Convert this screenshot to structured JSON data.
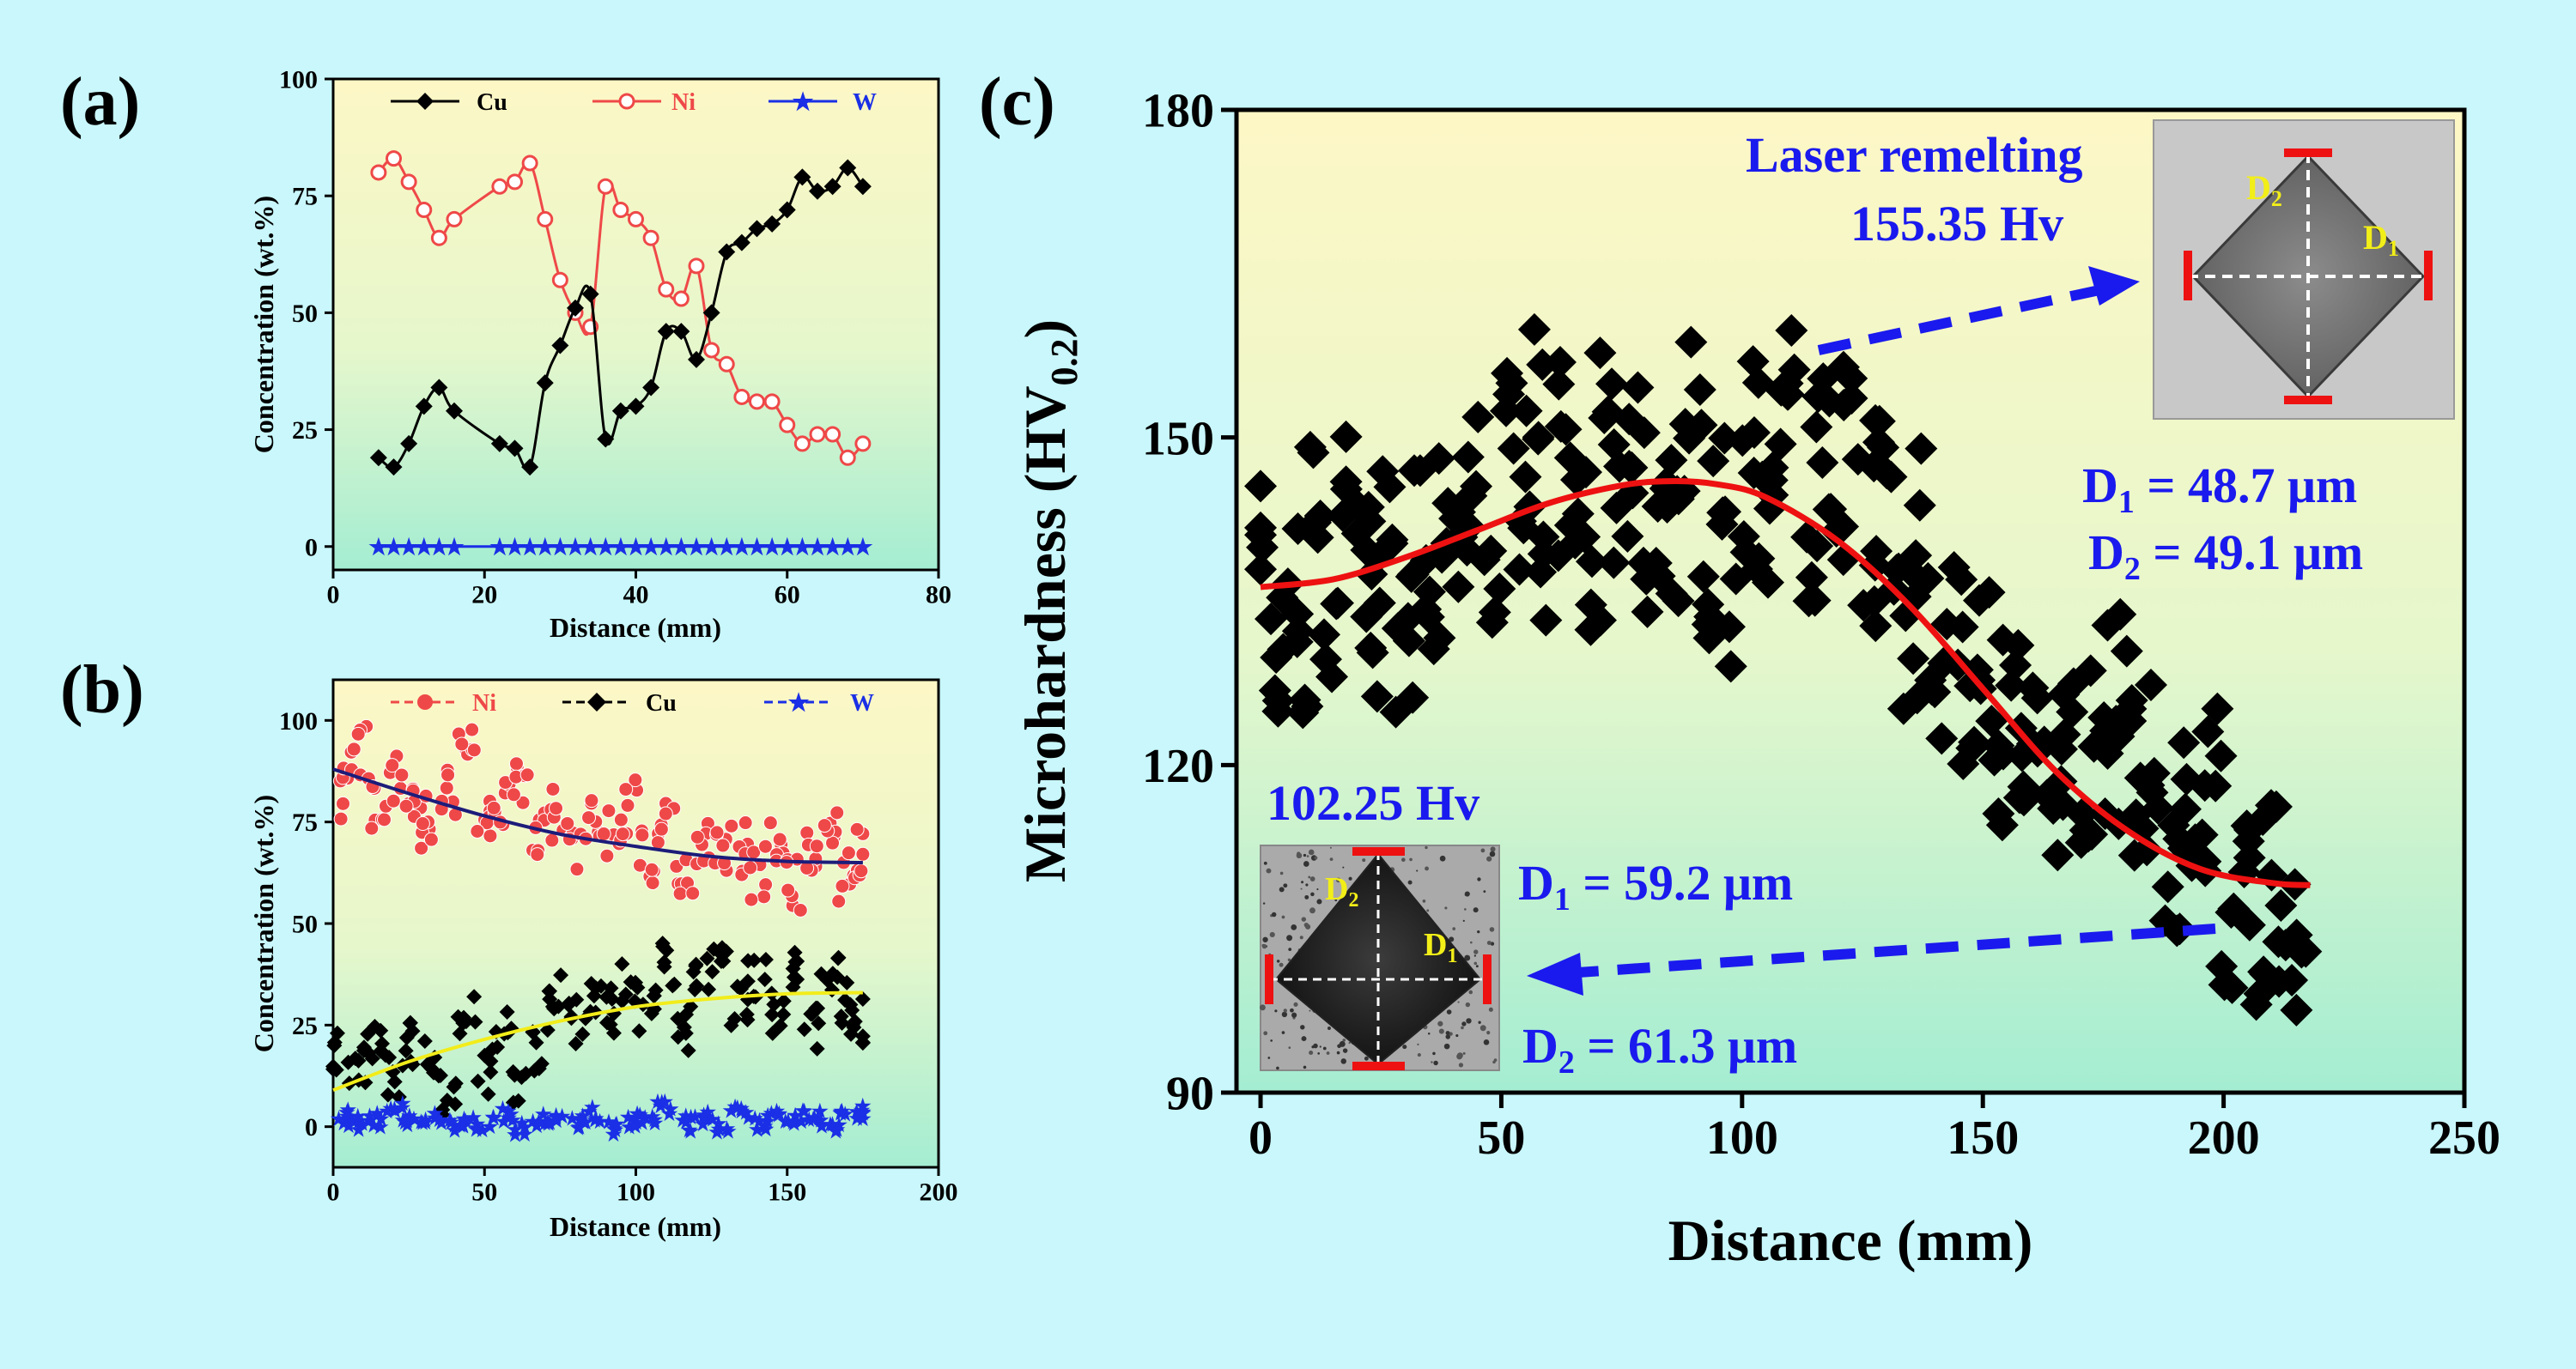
{
  "panel_labels": {
    "a": "(a)",
    "b": "(b)",
    "c": "(c)"
  },
  "colors": {
    "background": "#c9f7fb",
    "cu": "#000000",
    "ni": "#ef4848",
    "w": "#1a2fe6",
    "annotation": "#1a1aee",
    "fit_red": "#ee1111",
    "fit_yellow": "#f2ec1a",
    "fit_navy": "#1c1c7a",
    "label_yellow": "#f2ee18"
  },
  "chart_data": [
    {
      "id": "a",
      "type": "line",
      "xlabel": "Distance (mm)",
      "ylabel": "Concentration (wt.%)",
      "xlim": [
        0,
        80
      ],
      "ylim": [
        -5,
        100
      ],
      "xticks": [
        0,
        20,
        40,
        60,
        80
      ],
      "yticks": [
        0,
        25,
        50,
        75,
        100
      ],
      "legend": [
        "Cu",
        "Ni",
        "W"
      ],
      "series": [
        {
          "name": "Cu",
          "x": [
            6,
            8,
            10,
            12,
            14,
            16,
            22,
            24,
            26,
            28,
            30,
            32,
            34,
            36,
            38,
            40,
            42,
            44,
            46,
            48,
            50,
            52,
            54,
            56,
            58,
            60,
            62,
            64,
            66,
            68,
            70
          ],
          "y": [
            19,
            17,
            22,
            30,
            34,
            29,
            22,
            21,
            17,
            35,
            43,
            51,
            54,
            23,
            29,
            30,
            34,
            46,
            46,
            40,
            50,
            63,
            65,
            68,
            69,
            72,
            79,
            76,
            77,
            81,
            77
          ]
        },
        {
          "name": "Ni",
          "x": [
            6,
            8,
            10,
            12,
            14,
            16,
            22,
            24,
            26,
            28,
            30,
            32,
            34,
            36,
            38,
            40,
            42,
            44,
            46,
            48,
            50,
            52,
            54,
            56,
            58,
            60,
            62,
            64,
            66,
            68,
            70
          ],
          "y": [
            80,
            83,
            78,
            72,
            66,
            70,
            77,
            78,
            82,
            70,
            57,
            50,
            47,
            77,
            72,
            70,
            66,
            55,
            53,
            60,
            42,
            39,
            32,
            31,
            31,
            26,
            22,
            24,
            24,
            19,
            22
          ]
        },
        {
          "name": "W",
          "x": [
            6,
            8,
            10,
            12,
            14,
            16,
            22,
            24,
            26,
            28,
            30,
            32,
            34,
            36,
            38,
            40,
            42,
            44,
            46,
            48,
            50,
            52,
            54,
            56,
            58,
            60,
            62,
            64,
            66,
            68,
            70
          ],
          "y": [
            0,
            0,
            0,
            0,
            0,
            0,
            0,
            0,
            0,
            0,
            0,
            0,
            0,
            0,
            0,
            0,
            0,
            0,
            0,
            0,
            0,
            0,
            0,
            0,
            0,
            0,
            0,
            0,
            0,
            0,
            0
          ]
        }
      ]
    },
    {
      "id": "b",
      "type": "scatter",
      "xlabel": "Distance (mm)",
      "ylabel": "Concentration (wt.%)",
      "xlim": [
        0,
        200
      ],
      "ylim": [
        -10,
        110
      ],
      "xticks": [
        0,
        50,
        100,
        150,
        200
      ],
      "yticks": [
        0,
        25,
        50,
        75,
        100
      ],
      "legend": [
        "Ni",
        "Cu",
        "W"
      ],
      "series": [
        {
          "name": "Ni",
          "x": [
            2,
            8,
            14,
            20,
            26,
            32,
            38,
            44,
            50,
            56,
            62,
            68,
            74,
            80,
            86,
            92,
            98,
            104,
            110,
            116,
            122,
            128,
            134,
            140,
            146,
            152,
            158,
            164,
            170,
            174
          ],
          "y": [
            82,
            93,
            80,
            85,
            79,
            75,
            83,
            92,
            77,
            79,
            85,
            71,
            77,
            68,
            74,
            72,
            79,
            66,
            73,
            63,
            71,
            66,
            69,
            62,
            70,
            60,
            66,
            73,
            62,
            68
          ]
        },
        {
          "name": "Cu",
          "x": [
            2,
            8,
            14,
            20,
            26,
            32,
            38,
            44,
            50,
            56,
            62,
            68,
            74,
            80,
            86,
            92,
            98,
            104,
            110,
            116,
            122,
            128,
            134,
            140,
            146,
            152,
            158,
            164,
            170,
            174
          ],
          "y": [
            18,
            14,
            22,
            12,
            20,
            16,
            8,
            28,
            14,
            24,
            8,
            18,
            32,
            26,
            31,
            29,
            36,
            28,
            40,
            24,
            38,
            42,
            30,
            36,
            28,
            40,
            24,
            36,
            30,
            26
          ]
        },
        {
          "name": "W",
          "x": [
            2,
            8,
            14,
            20,
            26,
            32,
            38,
            44,
            50,
            56,
            62,
            68,
            74,
            80,
            86,
            92,
            98,
            104,
            110,
            116,
            122,
            128,
            134,
            140,
            146,
            152,
            158,
            164,
            170,
            174
          ],
          "y": [
            3,
            1,
            2,
            4,
            1,
            2,
            0,
            2,
            1,
            3,
            0,
            2,
            1,
            1,
            3,
            0,
            2,
            1,
            5,
            1,
            2,
            0,
            3,
            1,
            2,
            1,
            3,
            1,
            2,
            4
          ]
        }
      ],
      "fits": [
        {
          "name": "Ni fit",
          "x": [
            0,
            25,
            50,
            75,
            100,
            125,
            150,
            175
          ],
          "y": [
            88,
            82,
            76.5,
            72,
            69,
            66.5,
            65.3,
            65
          ]
        },
        {
          "name": "Cu fit",
          "x": [
            0,
            25,
            50,
            75,
            100,
            125,
            150,
            175
          ],
          "y": [
            9,
            16,
            21.5,
            26,
            29.5,
            31.5,
            32.7,
            33
          ]
        }
      ]
    },
    {
      "id": "c",
      "type": "scatter",
      "xlabel": "Distance (mm)",
      "ylabel": "Microhardness (HV",
      "ylabel_sub": "0.2",
      "ylabel_close": ")",
      "xlim": [
        -5,
        250
      ],
      "ylim": [
        90,
        180
      ],
      "xticks": [
        0,
        50,
        100,
        150,
        200,
        250
      ],
      "yticks": [
        90,
        120,
        150,
        180
      ],
      "series": [
        {
          "name": "Microhardness",
          "x": [
            0,
            3,
            6,
            9,
            12,
            15,
            18,
            21,
            24,
            27,
            30,
            33,
            36,
            39,
            42,
            45,
            48,
            51,
            54,
            57,
            60,
            63,
            66,
            69,
            72,
            75,
            78,
            81,
            84,
            87,
            90,
            93,
            96,
            99,
            102,
            105,
            108,
            111,
            114,
            117,
            120,
            123,
            126,
            129,
            132,
            135,
            138,
            141,
            144,
            147,
            150,
            153,
            156,
            159,
            162,
            165,
            168,
            171,
            174,
            177,
            180,
            183,
            186,
            189,
            192,
            195,
            198,
            201,
            204,
            207,
            210,
            213,
            216
          ],
          "y": [
            141,
            130,
            136,
            128,
            144,
            133,
            146,
            138,
            132,
            141,
            129,
            143,
            136,
            145,
            138,
            147,
            134,
            150,
            143,
            154,
            139,
            152,
            146,
            138,
            155,
            142,
            149,
            136,
            145,
            140,
            153,
            137,
            148,
            135,
            152,
            141,
            149,
            156,
            138,
            151,
            144,
            153,
            136,
            148,
            141,
            131,
            143,
            127,
            135,
            124,
            130,
            118,
            128,
            121,
            126,
            116,
            123,
            111,
            127,
            119,
            130,
            114,
            122,
            110,
            117,
            108,
            120,
            104,
            114,
            102,
            111,
            106,
            103
          ]
        }
      ],
      "fits": [
        {
          "name": "Gaussian fit",
          "x": [
            0,
            15,
            30,
            45,
            60,
            75,
            85,
            95,
            105,
            120,
            135,
            150,
            165,
            180,
            195,
            210,
            218
          ],
          "y": [
            136.3,
            137,
            139,
            141.5,
            144,
            145.6,
            146,
            145.7,
            144.5,
            140.5,
            134.5,
            127,
            119.5,
            114,
            110.5,
            109.2,
            109
          ]
        }
      ]
    }
  ],
  "annotations": {
    "laser_title": "Laser remelting",
    "top_hv": "155.35 Hv",
    "top_d1": "D",
    "top_d1_sub": "1",
    "top_d1_value": " = 48.7 μm",
    "top_d2": "D",
    "top_d2_sub": "2",
    "top_d2_value": " = 49.1 μm",
    "bottom_hv": "102.25 Hv",
    "bottom_d1": "D",
    "bottom_d1_sub": "1",
    "bottom_d1_value": " = 59.2 μm",
    "bottom_d2": "D",
    "bottom_d2_sub": "2",
    "bottom_d2_value": " = 61.3 μm",
    "inset_d1": "D",
    "inset_d1_sub": "1",
    "inset_d2": "D",
    "inset_d2_sub": "2"
  }
}
